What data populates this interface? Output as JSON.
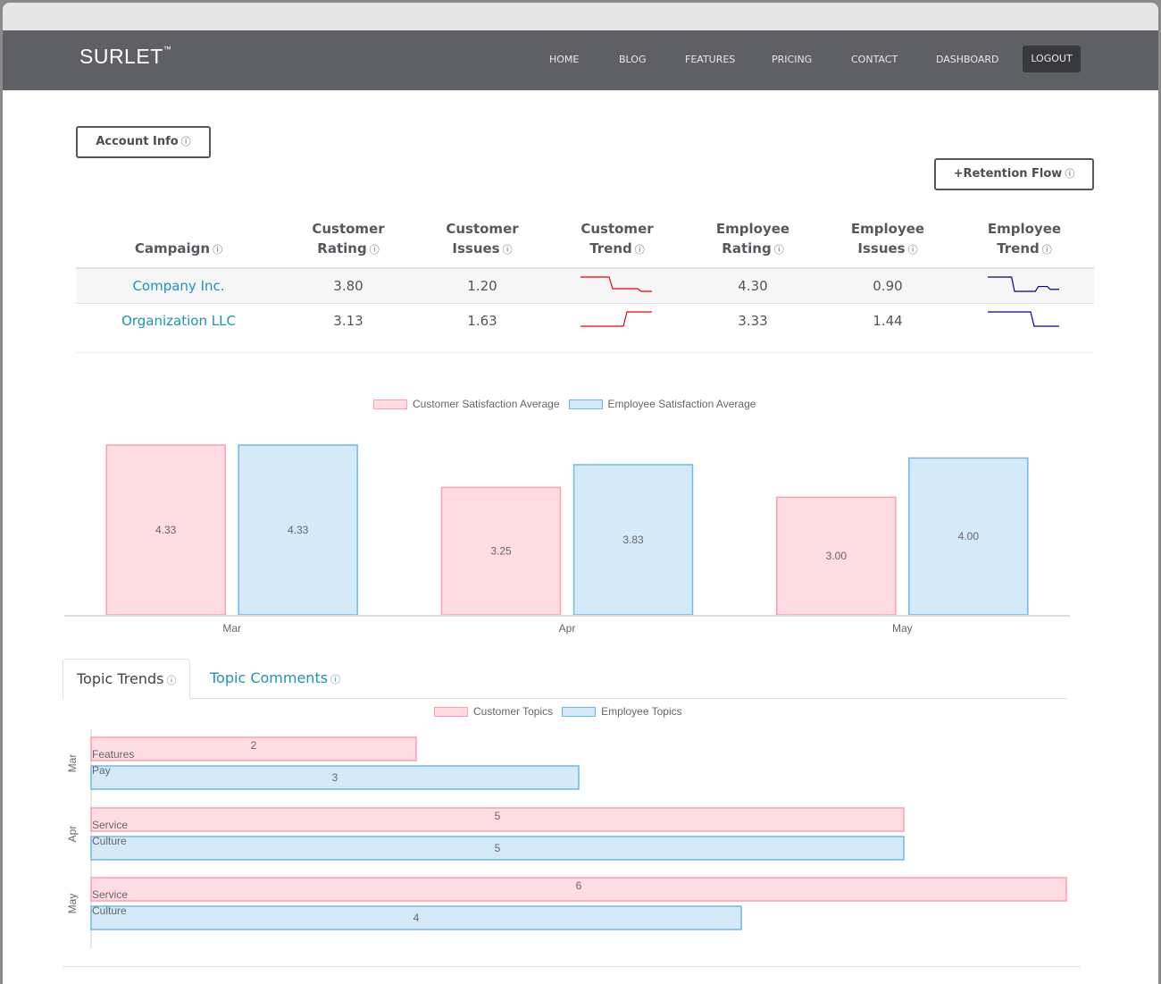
{
  "navbar": {
    "brand": "SURLET",
    "brand_mark": "™",
    "items": [
      "HOME",
      "BLOG",
      "FEATURES",
      "PRICING",
      "CONTACT",
      "DASHBOARD"
    ],
    "logout": "LOGOUT"
  },
  "buttons": {
    "account_info": "Account Info",
    "retention_flow": "+Retention Flow",
    "info_glyph": "ⓘ"
  },
  "table": {
    "headers": [
      {
        "line1": "",
        "line2": "Campaign"
      },
      {
        "line1": "Customer",
        "line2": "Rating"
      },
      {
        "line1": "Customer",
        "line2": "Issues"
      },
      {
        "line1": "Customer",
        "line2": "Trend"
      },
      {
        "line1": "Employee",
        "line2": "Rating"
      },
      {
        "line1": "Employee",
        "line2": "Issues"
      },
      {
        "line1": "Employee",
        "line2": "Trend"
      }
    ],
    "rows": [
      {
        "campaign": "Company Inc.",
        "customer_rating": "3.80",
        "customer_issues": "1.20",
        "customer_trend": [
          4.33,
          4.33,
          3.25,
          3.25,
          3.0
        ],
        "employee_rating": "4.30",
        "employee_issues": "0.90",
        "employee_trend": [
          4.33,
          4.33,
          3.83,
          3.83,
          4.0,
          3.9
        ]
      },
      {
        "campaign": "Organization LLC",
        "customer_rating": "3.13",
        "customer_issues": "1.63",
        "customer_trend": [
          3.0,
          3.0,
          3.0,
          3.5,
          3.5
        ],
        "employee_trend": [
          4.0,
          4.0,
          4.0,
          3.5,
          3.5
        ],
        "employee_rating": "3.33",
        "employee_issues": "1.44"
      }
    ],
    "trend_colors": {
      "customer": "#e8000b",
      "employee": "#00008b"
    }
  },
  "tabs": {
    "topic_trends": "Topic Trends",
    "topic_comments": "Topic Comments"
  },
  "colors": {
    "pink_fill": "#ffdde3",
    "pink_stroke": "#ff9db2",
    "blue_fill": "#d5eaf8",
    "blue_stroke": "#6fb9ea",
    "link": "#1e93b7",
    "navbar": "#5f6065"
  },
  "chart_data": [
    {
      "type": "bar",
      "title": "",
      "categories": [
        "Mar",
        "Apr",
        "May"
      ],
      "series": [
        {
          "name": "Customer Satisfaction Average",
          "values": [
            4.33,
            3.25,
            3.0
          ],
          "labels": [
            "4.33",
            "3.25",
            "3.00"
          ]
        },
        {
          "name": "Employee Satisfaction Average",
          "values": [
            4.33,
            3.83,
            4.0
          ],
          "labels": [
            "4.33",
            "3.83",
            "4.00"
          ]
        }
      ],
      "xlabel": "",
      "ylabel": "",
      "ylim": [
        0,
        4.33
      ],
      "grid": false,
      "legend": "top-center"
    },
    {
      "type": "bar",
      "orientation": "horizontal",
      "categories": [
        "Mar",
        "Apr",
        "May"
      ],
      "series": [
        {
          "name": "Customer Topics",
          "values": [
            2,
            5,
            6
          ],
          "topics": [
            "Features",
            "Service",
            "Service"
          ]
        },
        {
          "name": "Employee Topics",
          "values": [
            3,
            5,
            4
          ],
          "topics": [
            "Pay",
            "Culture",
            "Culture"
          ]
        }
      ],
      "xlim": [
        0,
        6
      ],
      "grid": false,
      "legend": "top-center"
    }
  ]
}
